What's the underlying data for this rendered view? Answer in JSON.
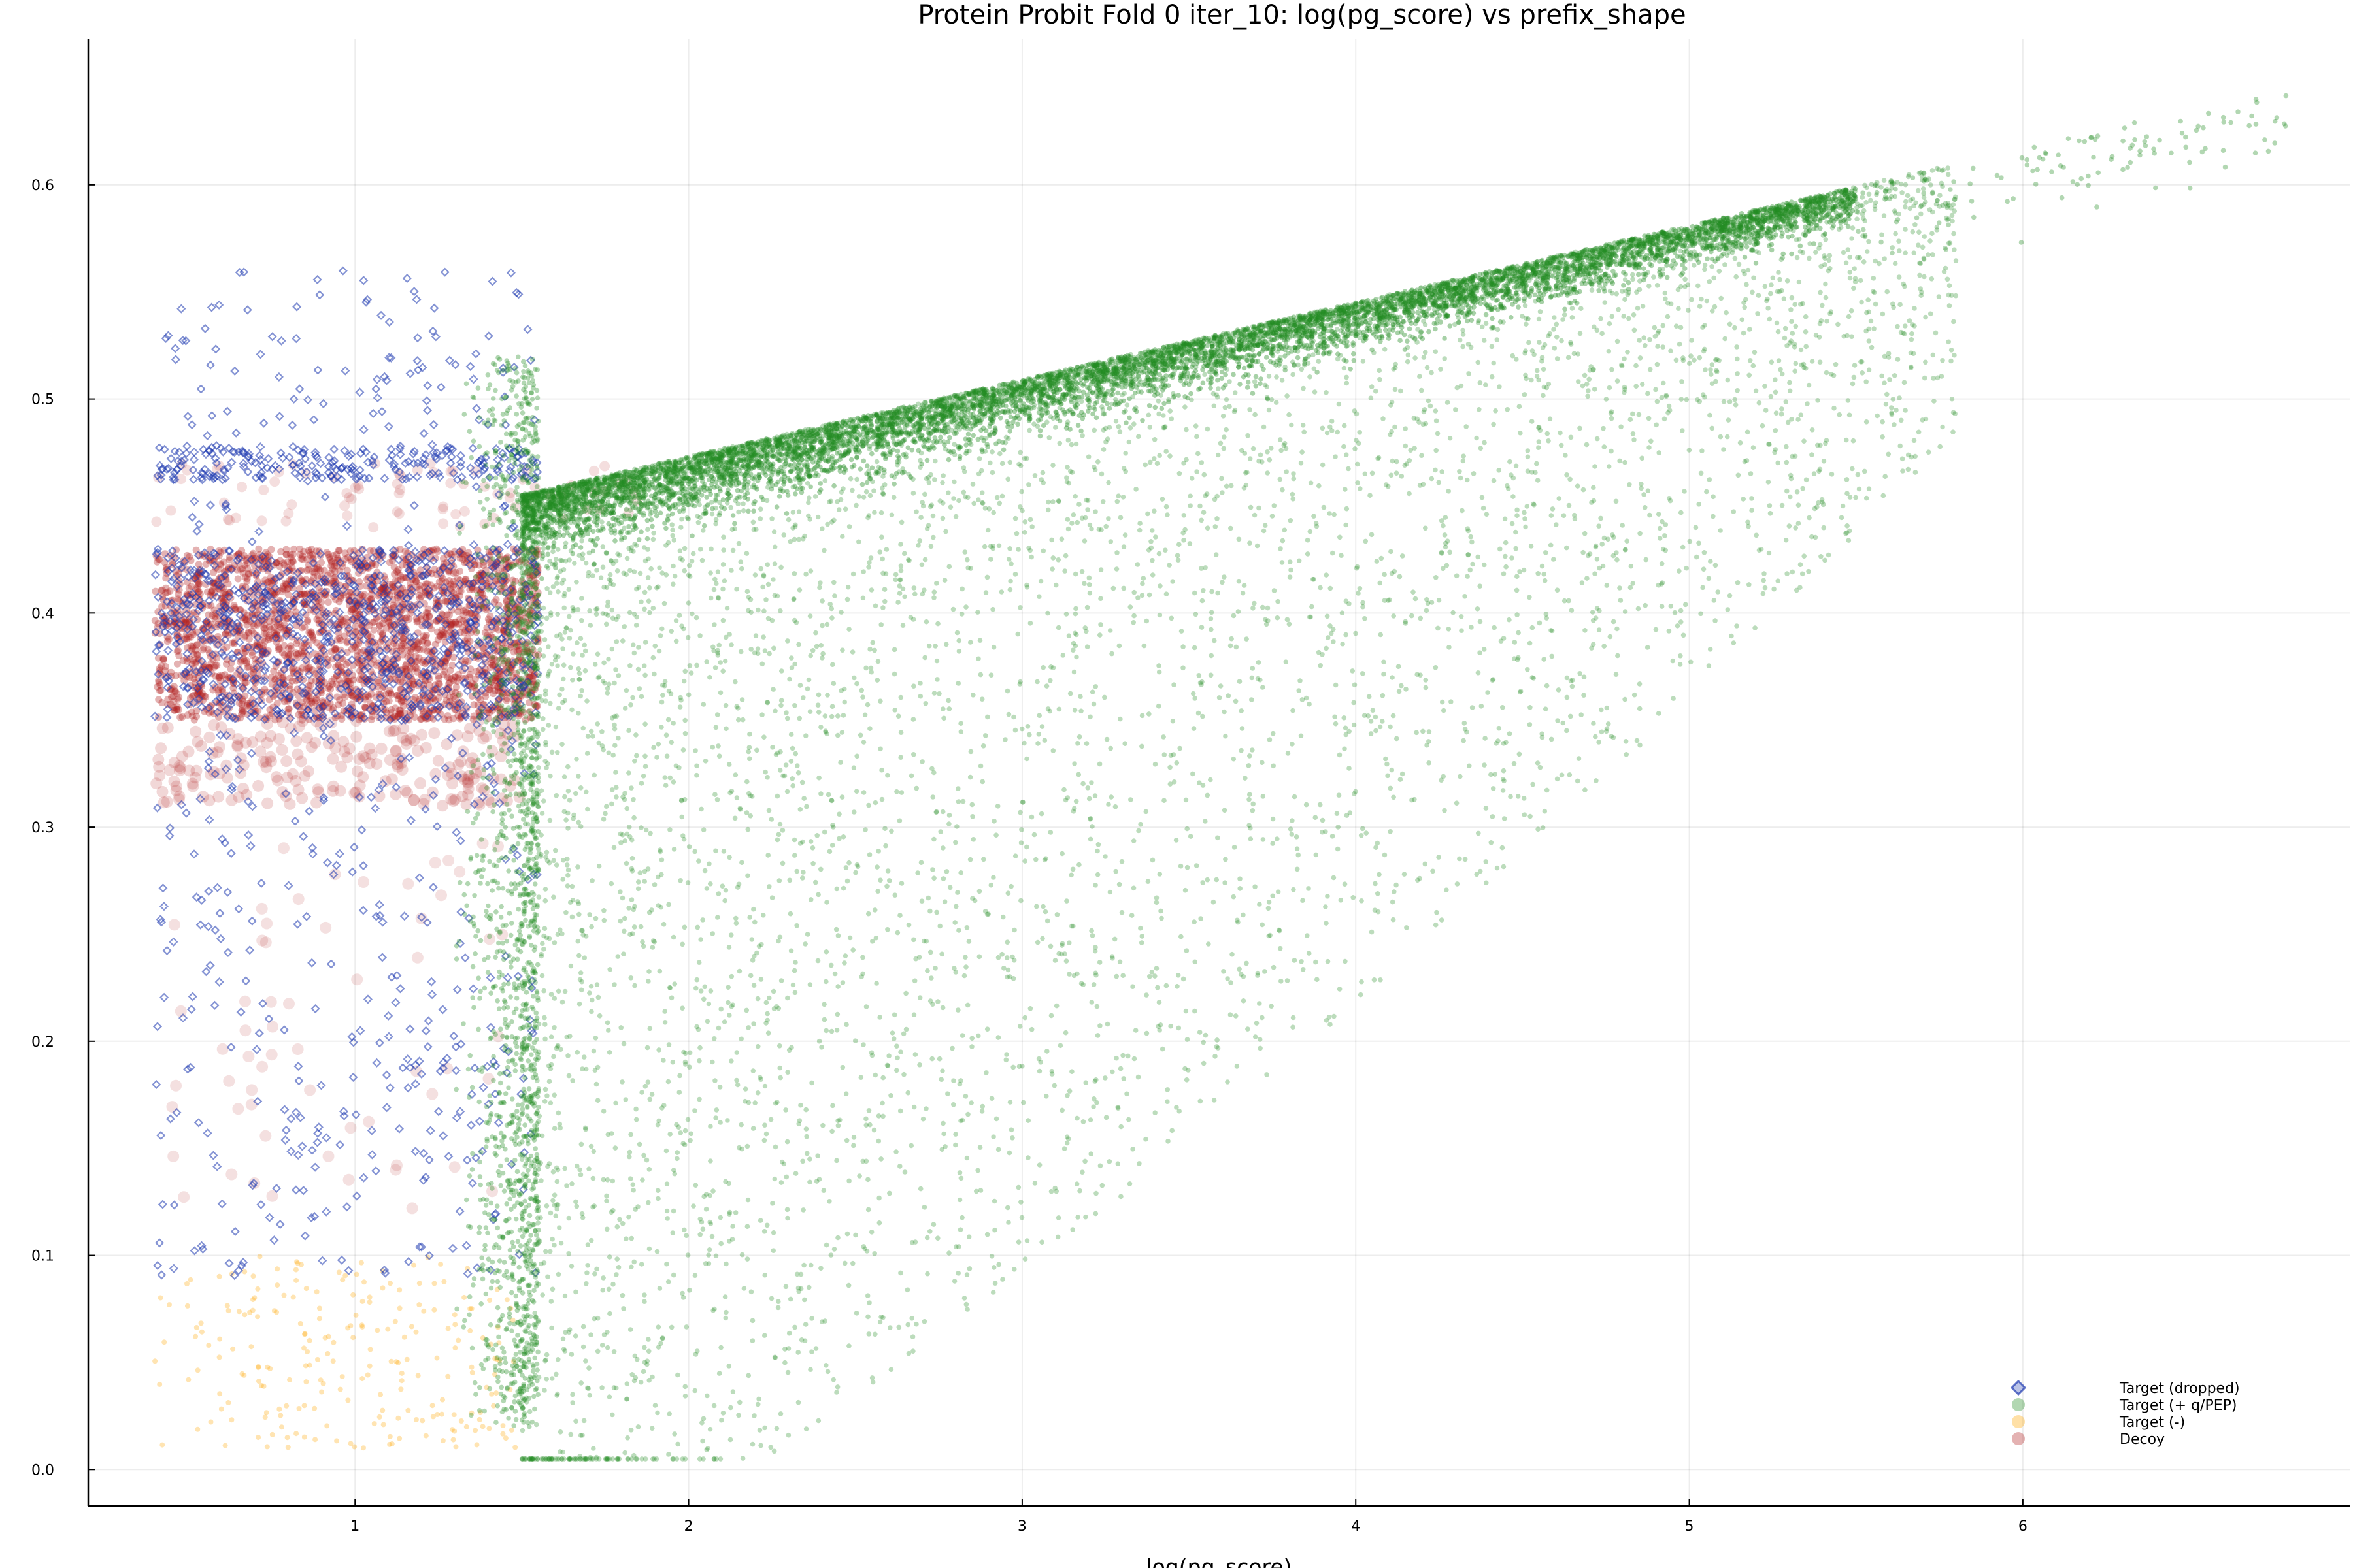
{
  "chart_data": {
    "type": "scatter",
    "title": "Protein Probit Fold 0 iter_10: log(pg_score) vs prefix_shape",
    "xlabel": "log(pg_score)",
    "ylabel": "",
    "xlim": [
      0.2,
      6.98
    ],
    "ylim": [
      -0.017,
      0.668
    ],
    "x_ticks": [
      1,
      2,
      3,
      4,
      5,
      6
    ],
    "y_ticks": [
      0.0,
      0.1,
      0.2,
      0.3,
      0.4,
      0.5,
      0.6
    ],
    "x_tick_labels": [
      "1",
      "2",
      "3",
      "4",
      "5",
      "6"
    ],
    "y_tick_labels": [
      "0.0",
      "0.1",
      "0.2",
      "0.3",
      "0.4",
      "0.5",
      "0.6"
    ],
    "grid": true,
    "legend_position": "bottom-right",
    "series": [
      {
        "name": "Target (dropped)",
        "marker": "diamond",
        "color": "#1f3bb0",
        "x_range": [
          0.38,
          1.55
        ],
        "density_note": "dense bands near y≈0.35–0.43 and y≈0.46–0.475; sparse from y≈0.09 to y≈0.58",
        "samples": [
          [
            0.45,
            0.55
          ],
          [
            0.55,
            0.577
          ],
          [
            0.92,
            0.585
          ],
          [
            0.6,
            0.47
          ],
          [
            1.2,
            0.47
          ],
          [
            0.5,
            0.42
          ],
          [
            1.0,
            0.4
          ],
          [
            1.4,
            0.38
          ],
          [
            0.7,
            0.3
          ],
          [
            1.1,
            0.25
          ],
          [
            0.6,
            0.2
          ],
          [
            0.9,
            0.15
          ],
          [
            0.5,
            0.11
          ],
          [
            1.3,
            0.1
          ]
        ]
      },
      {
        "name": "Target (+ q/PEP)",
        "marker": "circle",
        "color": "#228b22",
        "x_range": [
          1.25,
          6.8
        ],
        "density_note": "upper envelope rises from ~0.47 at x≈1.5 to ~0.64 at x≈6.5; spread down to ~0.0 for x<3",
        "samples": [
          [
            1.5,
            0.47
          ],
          [
            2.0,
            0.46
          ],
          [
            2.5,
            0.5
          ],
          [
            3.0,
            0.52
          ],
          [
            3.5,
            0.54
          ],
          [
            4.0,
            0.56
          ],
          [
            4.5,
            0.58
          ],
          [
            5.0,
            0.6
          ],
          [
            5.5,
            0.62
          ],
          [
            6.0,
            0.63
          ],
          [
            6.5,
            0.64
          ],
          [
            6.8,
            0.64
          ],
          [
            2.2,
            0.1
          ],
          [
            3.0,
            0.2
          ],
          [
            4.0,
            0.3
          ],
          [
            5.0,
            0.45
          ],
          [
            1.5,
            0.03
          ],
          [
            2.5,
            0.01
          ]
        ]
      },
      {
        "name": "Target (-)",
        "marker": "circle",
        "color": "#ffa500",
        "x_range": [
          0.4,
          1.5
        ],
        "density_note": "concentrated in y≈0.0–0.1",
        "samples": [
          [
            0.45,
            0.05
          ],
          [
            0.7,
            0.03
          ],
          [
            0.9,
            0.07
          ],
          [
            1.1,
            0.09
          ],
          [
            0.6,
            0.02
          ],
          [
            1.2,
            0.04
          ]
        ]
      },
      {
        "name": "Decoy",
        "marker": "circle",
        "color": "#b22222",
        "x_range": [
          0.4,
          1.85
        ],
        "density_note": "very dense band y≈0.35–0.43; scattered points y≈0.1–0.47",
        "samples": [
          [
            0.5,
            0.4
          ],
          [
            0.8,
            0.38
          ],
          [
            1.1,
            0.42
          ],
          [
            1.4,
            0.4
          ],
          [
            1.6,
            0.39
          ],
          [
            1.85,
            0.46
          ],
          [
            0.7,
            0.32
          ],
          [
            1.0,
            0.26
          ],
          [
            0.6,
            0.16
          ],
          [
            1.2,
            0.22
          ]
        ]
      }
    ]
  }
}
